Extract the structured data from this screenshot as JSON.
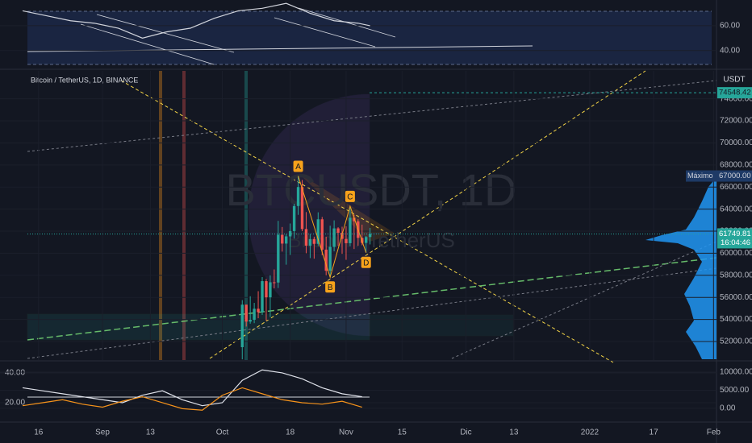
{
  "chart_data": [
    {
      "type": "line",
      "x": [
        -20,
        -14,
        -8,
        -2,
        4,
        10,
        16,
        22,
        28,
        34,
        40,
        46,
        52,
        58,
        64,
        67
      ],
      "series": [
        {
          "color": "#d1d4dc",
          "values": [
            72,
            68,
            64,
            62,
            58,
            50,
            55,
            58,
            66,
            72,
            74,
            78,
            70,
            64,
            62,
            60
          ]
        }
      ],
      "ylim": [
        26.25,
        79.4
      ],
      "yticks": [
        {
          "value": 60,
          "label": "60.00"
        },
        {
          "value": 40,
          "label": "40.00"
        }
      ]
    },
    {
      "type": "candlestick",
      "title": "Bitcoin / TetherUS, 1D, BINANCE",
      "watermark": "BTCUSDT, 1D",
      "watermark_subtitle": "Bitcoin / TetherUS",
      "currency": "USDT",
      "x": [
        35,
        36,
        37,
        38,
        39,
        40,
        41,
        42,
        43,
        44,
        45,
        46,
        47,
        48,
        49,
        50,
        51,
        52,
        53,
        54,
        55,
        56,
        57,
        58,
        59,
        60,
        61,
        62,
        63,
        64,
        65,
        66,
        67
      ],
      "open": [
        51486,
        55338,
        53805,
        53967,
        54968,
        54660,
        57471,
        56005,
        57367,
        57347,
        61672,
        60875,
        61528,
        62010,
        64280,
        66001,
        62193,
        60688,
        61286,
        60852,
        63078,
        60328,
        58413,
        60575,
        62253,
        61859,
        61300,
        60911,
        63219,
        62896,
        61395,
        60937,
        61470
      ],
      "high": [
        55750,
        55339,
        56100,
        55500,
        56561,
        57839,
        57680,
        58000,
        58532,
        62933,
        62378,
        61718,
        62695,
        64486,
        67000,
        66639,
        63732,
        61747,
        61500,
        63710,
        63293,
        61496,
        62499,
        62980,
        62359,
        62405,
        62437,
        64270,
        63500,
        63086,
        62595,
        61560,
        62300
      ],
      "low": [
        50382,
        53357,
        53617,
        53661,
        54112,
        54415,
        53879,
        54221,
        56818,
        56850,
        60150,
        58963,
        59844,
        61322,
        63481,
        62000,
        60000,
        59562,
        59510,
        60650,
        59817,
        58000,
        57820,
        60174,
        60673,
        59945,
        59405,
        60624,
        60382,
        60677,
        60721,
        60050,
        60800
      ],
      "close": [
        55338,
        53805,
        53967,
        54968,
        54660,
        57471,
        56005,
        57367,
        57347,
        61672,
        60875,
        61528,
        62010,
        64280,
        66001,
        62193,
        60688,
        61286,
        60852,
        63078,
        60328,
        58413,
        60575,
        62253,
        61859,
        61300,
        60911,
        63219,
        62896,
        61395,
        60937,
        61470,
        61749.81
      ],
      "up_color": "#26a69a",
      "down_color": "#ef5350",
      "ylim": [
        50320,
        76530
      ],
      "yticks": [
        {
          "value": 74000,
          "label": "74000.00"
        },
        {
          "value": 72000,
          "label": "72000.00"
        },
        {
          "value": 70000,
          "label": "70000.00"
        },
        {
          "value": 68000,
          "label": "68000.00"
        },
        {
          "value": 66000,
          "label": "66000.00"
        },
        {
          "value": 64000,
          "label": "64000.00"
        },
        {
          "value": 62000,
          "label": "62000.00"
        },
        {
          "value": 60000,
          "label": "60000.00"
        },
        {
          "value": 58000,
          "label": "58000.00"
        },
        {
          "value": 56000,
          "label": "56000.00"
        },
        {
          "value": 54000,
          "label": "54000.00"
        },
        {
          "value": 52000,
          "label": "52000.00"
        }
      ],
      "xlim": [
        -25.66,
        153.74
      ],
      "xticks": [
        {
          "value": -16,
          "label": "16"
        },
        {
          "value": 0,
          "label": "Sep"
        },
        {
          "value": 12,
          "label": "13"
        },
        {
          "value": 30,
          "label": "Oct"
        },
        {
          "value": 47,
          "label": "18"
        },
        {
          "value": 61,
          "label": "Nov"
        },
        {
          "value": 75,
          "label": "15"
        },
        {
          "value": 91,
          "label": "Dic"
        },
        {
          "value": 103,
          "label": "13"
        },
        {
          "value": 122,
          "label": "2022"
        },
        {
          "value": 138,
          "label": "17"
        },
        {
          "value": 153,
          "label": "Feb"
        }
      ],
      "level": 74548.42,
      "last_price": 61749.81,
      "countdown": "16:04:46",
      "max_label": "Máximo",
      "max_value": {
        "value": 67000,
        "label": "67000.00"
      },
      "patterns": [
        {
          "label": "A",
          "x": 49,
          "y": 67000
        },
        {
          "label": "B",
          "x": 57,
          "y": 57820
        },
        {
          "label": "C",
          "x": 62,
          "y": 64270
        },
        {
          "label": "D",
          "x": 66,
          "y": 60050
        }
      ],
      "pattern_color": "#f7a21b"
    },
    {
      "type": "line",
      "x": [
        -20,
        -15,
        -10,
        -5,
        0,
        5,
        10,
        15,
        20,
        25,
        30,
        35,
        40,
        45,
        50,
        55,
        60,
        65
      ],
      "series": [
        {
          "color": "#e0e3eb",
          "values": [
            30,
            28,
            26,
            24,
            22,
            20,
            25,
            28,
            22,
            18,
            20,
            35,
            42,
            40,
            36,
            30,
            26,
            24
          ]
        },
        {
          "color": "#f7931a",
          "values": [
            18,
            20,
            22,
            19,
            17,
            21,
            24,
            20,
            16,
            15,
            25,
            30,
            26,
            22,
            20,
            19,
            21,
            17
          ]
        }
      ],
      "ylim": [
        8.1,
        47.0
      ],
      "yticks": [
        {
          "value": 40,
          "label": "40.00"
        },
        {
          "value": 20,
          "label": "20.00"
        }
      ],
      "y2lim": [
        -3333,
        12667
      ],
      "y2ticks": [
        {
          "value": 10000,
          "label": "10000.00"
        },
        {
          "value": 5000,
          "label": "5000.00"
        },
        {
          "value": 0,
          "label": "0.00"
        }
      ]
    }
  ]
}
